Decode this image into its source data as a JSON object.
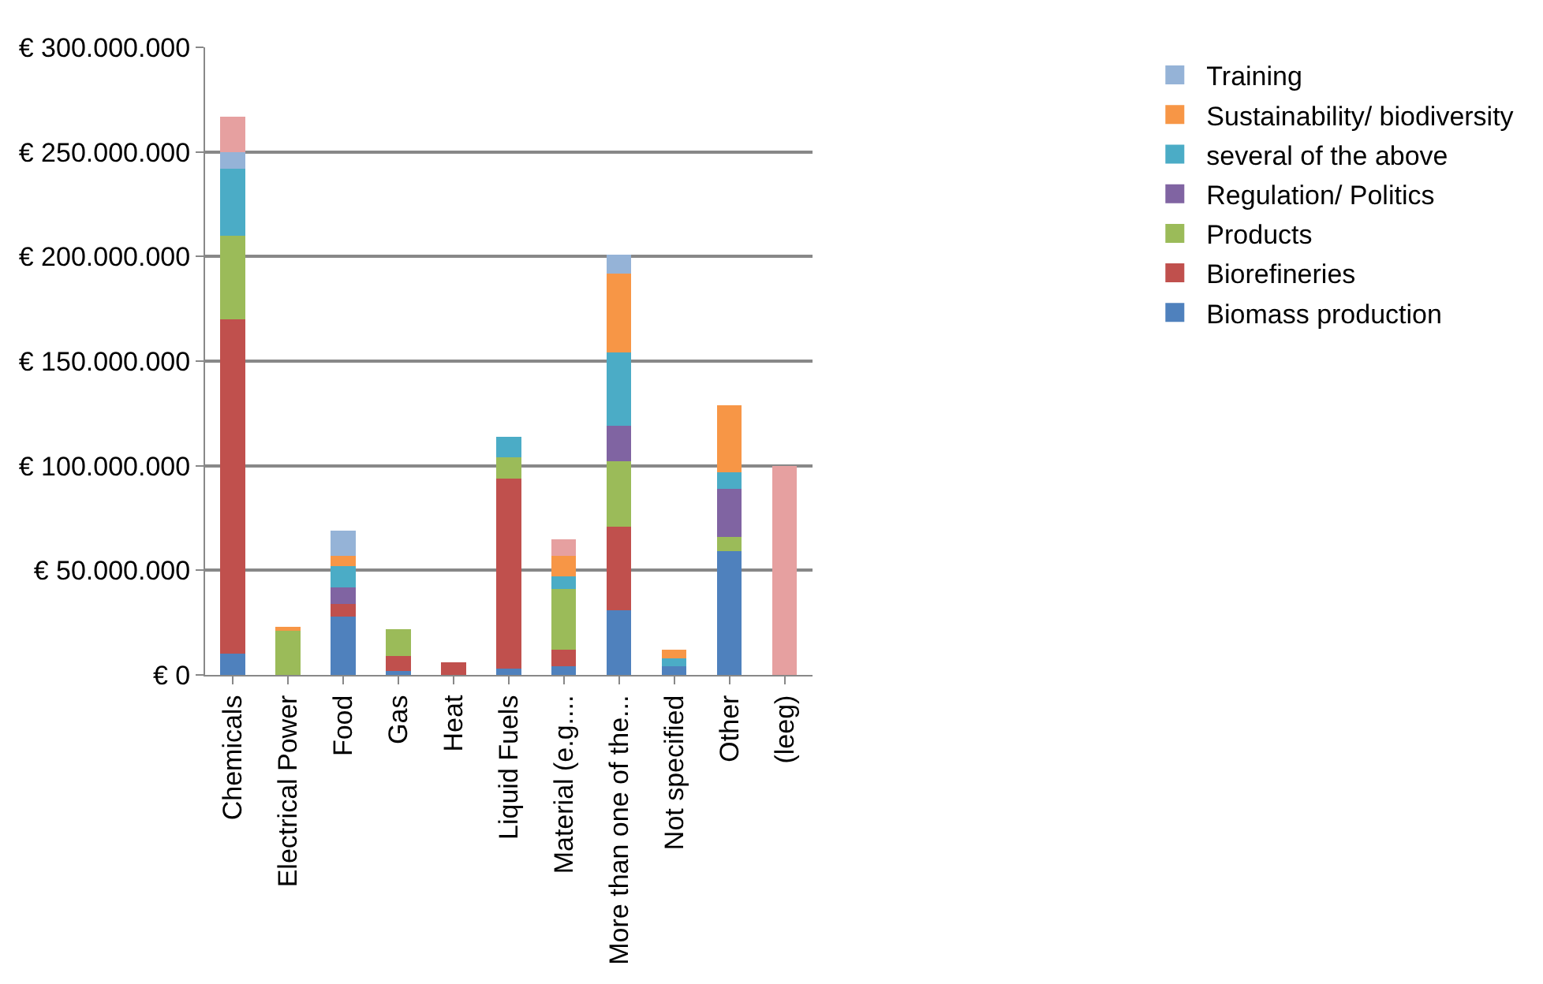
{
  "chart_data": {
    "type": "bar",
    "stacked": true,
    "grid": "y",
    "legend": "right",
    "categories": [
      "Chemicals",
      "Electrical Power",
      "Food",
      "Gas",
      "Heat",
      "Liquid Fuels",
      "Material (e.g....",
      "More than one of the...",
      "Not specified",
      "Other",
      "(leeg)"
    ],
    "ylim": [
      0,
      300000000
    ],
    "yticks": [
      {
        "value": 0,
        "label": "€ 0"
      },
      {
        "value": 50000000,
        "label": "€ 50.000.000"
      },
      {
        "value": 100000000,
        "label": "€ 100.000.000"
      },
      {
        "value": 150000000,
        "label": "€ 150.000.000"
      },
      {
        "value": 200000000,
        "label": "€ 200.000.000"
      },
      {
        "value": 250000000,
        "label": "€ 250.000.000"
      },
      {
        "value": 300000000,
        "label": "€ 300.000.000"
      }
    ],
    "series": [
      {
        "name": "Biomass production",
        "color": "#4f81bd",
        "values": [
          10000000,
          0,
          28000000,
          2000000,
          0,
          3000000,
          4000000,
          31000000,
          4000000,
          59000000,
          0
        ]
      },
      {
        "name": "Biorefineries",
        "color": "#c0504d",
        "values": [
          160000000,
          0,
          6000000,
          7000000,
          6000000,
          91000000,
          8000000,
          40000000,
          0,
          0,
          0
        ]
      },
      {
        "name": "Products",
        "color": "#9bbb59",
        "values": [
          40000000,
          21000000,
          0,
          13000000,
          0,
          10000000,
          29000000,
          31000000,
          0,
          7000000,
          0
        ]
      },
      {
        "name": "Regulation/ Politics",
        "color": "#8064a2",
        "values": [
          0,
          0,
          8000000,
          0,
          0,
          0,
          0,
          17000000,
          0,
          23000000,
          0
        ]
      },
      {
        "name": "several of the above",
        "color": "#4bacc6",
        "values": [
          32000000,
          0,
          10000000,
          0,
          0,
          10000000,
          6000000,
          35000000,
          4000000,
          8000000,
          0
        ]
      },
      {
        "name": "Sustainability/ biodiversity",
        "color": "#f79646",
        "values": [
          0,
          2000000,
          5000000,
          0,
          0,
          0,
          10000000,
          38000000,
          4000000,
          32000000,
          0
        ]
      },
      {
        "name": "Training",
        "color": "#95b3d7",
        "values": [
          8000000,
          0,
          12000000,
          0,
          0,
          0,
          0,
          9000000,
          0,
          0,
          0
        ]
      },
      {
        "color": "#e6a0a0",
        "values": [
          17000000,
          0,
          0,
          0,
          0,
          0,
          8000000,
          0,
          0,
          0,
          100000000
        ]
      }
    ]
  }
}
